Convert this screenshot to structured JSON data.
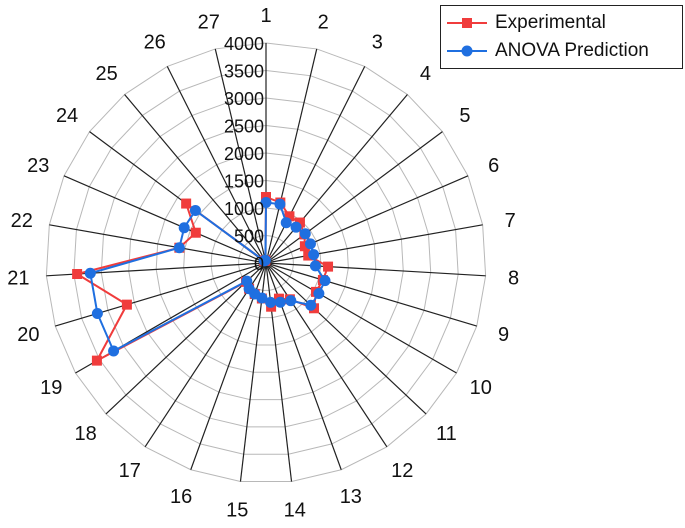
{
  "chart_data": {
    "type": "radar",
    "categories": [
      "1",
      "2",
      "3",
      "4",
      "5",
      "6",
      "7",
      "8",
      "9",
      "10",
      "11",
      "12",
      "13",
      "14",
      "15",
      "16",
      "17",
      "18",
      "19",
      "20",
      "21",
      "22",
      "23",
      "24",
      "25",
      "26",
      "27"
    ],
    "radial_ticks": [
      "0",
      "500",
      "1000",
      "1500",
      "2000",
      "2500",
      "3000",
      "3500",
      "4000"
    ],
    "rlim": [
      0,
      4000
    ],
    "series": [
      {
        "name": "Experimental",
        "color": "#f03c3c",
        "marker": "square",
        "values": [
          1200,
          1130,
          950,
          960,
          870,
          770,
          780,
          1130,
          1080,
          1050,
          1200,
          790,
          690,
          800,
          650,
          600,
          560,
          500,
          3550,
          2640,
          3440,
          1600,
          1390,
          1810,
          50,
          50,
          50
        ]
      },
      {
        "name": "ANOVA Prediction",
        "color": "#1f6fe0",
        "marker": "circle",
        "values": [
          1100,
          1100,
          820,
          850,
          890,
          880,
          880,
          900,
          1120,
          1110,
          1120,
          820,
          760,
          720,
          640,
          600,
          560,
          480,
          3200,
          3200,
          3200,
          1600,
          1620,
          1600,
          50,
          50,
          50
        ]
      }
    ],
    "legend": "top-right"
  }
}
